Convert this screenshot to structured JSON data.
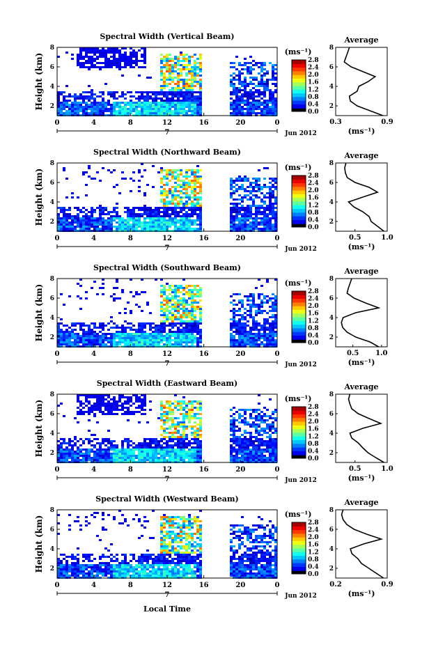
{
  "figure": {
    "xlabel": "Local Time",
    "date_label": "Jun 2012",
    "day_label": "7",
    "ylabel": "Height (km)",
    "colorbar_unit": "(ms⁻¹)",
    "colorbar_ticks": [
      "0.0",
      "0.4",
      "0.8",
      "1.2",
      "1.6",
      "2.0",
      "2.4",
      "2.8"
    ],
    "avg_title": "Average",
    "avg_xlabel": "(ms⁻¹)"
  },
  "chart_data": [
    {
      "type": "heatmap",
      "title": "Spectral Width (Vertical Beam)",
      "xlabel": "Local Time",
      "ylabel": "Height (km)",
      "x_ticks": [
        "0",
        "4",
        "8",
        "12",
        "16",
        "20",
        "0"
      ],
      "y_ticks": [
        "2",
        "4",
        "6",
        "8"
      ],
      "xlim": [
        0,
        24
      ],
      "ylim": [
        1,
        8
      ],
      "colorbar": {
        "label": "(ms⁻¹)",
        "range": [
          0.0,
          2.8
        ]
      },
      "data_gaps_hours": [
        [
          15.7,
          18.8
        ]
      ],
      "average_profile": {
        "title": "Average",
        "xlabel": "(ms⁻¹)",
        "x_ticks": [
          "0.3",
          "0.9"
        ],
        "xlim": [
          0.3,
          0.9
        ],
        "y_ticks": [
          "2",
          "4",
          "6",
          "8"
        ],
        "height_km": [
          1.0,
          1.5,
          2.0,
          2.5,
          3.0,
          3.5,
          4.0,
          4.5,
          5.0,
          5.5,
          6.0,
          6.5,
          7.0,
          7.5,
          8.0
        ],
        "width_ms": [
          0.85,
          0.7,
          0.55,
          0.47,
          0.46,
          0.55,
          0.57,
          0.68,
          0.76,
          0.62,
          0.48,
          0.4,
          0.42,
          0.44,
          0.46
        ]
      }
    },
    {
      "type": "heatmap",
      "title": "Spectral Width (Northward Beam)",
      "xlabel": "Local Time",
      "ylabel": "Height (km)",
      "x_ticks": [
        "0",
        "4",
        "8",
        "12",
        "16",
        "20",
        "0"
      ],
      "y_ticks": [
        "2",
        "4",
        "6",
        "8"
      ],
      "xlim": [
        0,
        24
      ],
      "ylim": [
        1,
        8
      ],
      "colorbar": {
        "label": "(ms⁻¹)",
        "range": [
          0.0,
          2.8
        ]
      },
      "data_gaps_hours": [
        [
          15.7,
          18.8
        ]
      ],
      "average_profile": {
        "title": "Average",
        "xlabel": "(ms⁻¹)",
        "x_ticks": [
          "0.5",
          "1.0"
        ],
        "xlim": [
          0.2,
          1.0
        ],
        "y_ticks": [
          "2",
          "4",
          "6",
          "8"
        ],
        "height_km": [
          1.0,
          1.5,
          2.0,
          2.5,
          3.0,
          3.5,
          4.0,
          4.5,
          5.0,
          5.5,
          6.0,
          6.5,
          7.0,
          7.5,
          8.0
        ],
        "width_ms": [
          0.95,
          0.85,
          0.75,
          0.72,
          0.62,
          0.48,
          0.4,
          0.62,
          0.85,
          0.72,
          0.5,
          0.38,
          0.35,
          0.34,
          0.36
        ]
      }
    },
    {
      "type": "heatmap",
      "title": "Spectral Width (Southward Beam)",
      "xlabel": "Local Time",
      "ylabel": "Height (km)",
      "x_ticks": [
        "0",
        "4",
        "8",
        "12",
        "16",
        "20",
        "0"
      ],
      "y_ticks": [
        "2",
        "4",
        "6",
        "8"
      ],
      "xlim": [
        0,
        24
      ],
      "ylim": [
        1,
        8
      ],
      "colorbar": {
        "label": "(ms⁻¹)",
        "range": [
          0.0,
          2.8
        ]
      },
      "data_gaps_hours": [
        [
          15.7,
          18.8
        ]
      ],
      "average_profile": {
        "title": "Average",
        "xlabel": "(ms⁻¹)",
        "x_ticks": [
          "0.5",
          "1.0"
        ],
        "xlim": [
          0.2,
          1.1
        ],
        "y_ticks": [
          "2",
          "4",
          "6",
          "8"
        ],
        "height_km": [
          1.0,
          1.5,
          2.0,
          2.5,
          3.0,
          3.5,
          4.0,
          4.5,
          5.0,
          5.5,
          6.0,
          6.5,
          7.0,
          7.5,
          8.0
        ],
        "width_ms": [
          0.95,
          0.8,
          0.55,
          0.4,
          0.32,
          0.3,
          0.33,
          0.55,
          0.95,
          0.72,
          0.52,
          0.4,
          0.42,
          0.45,
          0.48
        ]
      }
    },
    {
      "type": "heatmap",
      "title": "Spectral Width (Eastward Beam)",
      "xlabel": "Local Time",
      "ylabel": "Height (km)",
      "x_ticks": [
        "0",
        "4",
        "8",
        "12",
        "16",
        "20",
        "0"
      ],
      "y_ticks": [
        "2",
        "4",
        "6",
        "8"
      ],
      "xlim": [
        0,
        24
      ],
      "ylim": [
        1,
        8
      ],
      "colorbar": {
        "label": "(ms⁻¹)",
        "range": [
          0.0,
          2.8
        ]
      },
      "data_gaps_hours": [
        [
          15.7,
          18.8
        ]
      ],
      "average_profile": {
        "title": "Average",
        "xlabel": "(ms⁻¹)",
        "x_ticks": [
          "0.5",
          "1.0"
        ],
        "xlim": [
          0.2,
          1.0
        ],
        "y_ticks": [
          "2",
          "4",
          "6",
          "8"
        ],
        "height_km": [
          1.0,
          1.5,
          2.0,
          2.5,
          3.0,
          3.5,
          4.0,
          4.5,
          5.0,
          5.5,
          6.0,
          6.5,
          7.0,
          7.5,
          8.0
        ],
        "width_ms": [
          0.95,
          0.82,
          0.7,
          0.62,
          0.55,
          0.45,
          0.42,
          0.62,
          0.9,
          0.72,
          0.55,
          0.45,
          0.42,
          0.4,
          0.42
        ]
      }
    },
    {
      "type": "heatmap",
      "title": "Spectral Width (Westward Beam)",
      "xlabel": "Local Time",
      "ylabel": "Height (km)",
      "x_ticks": [
        "0",
        "4",
        "8",
        "12",
        "16",
        "20",
        "0"
      ],
      "y_ticks": [
        "2",
        "4",
        "6",
        "8"
      ],
      "xlim": [
        0,
        24
      ],
      "ylim": [
        1,
        8
      ],
      "colorbar": {
        "label": "(ms⁻¹)",
        "range": [
          0.0,
          2.8
        ]
      },
      "data_gaps_hours": [
        [
          15.7,
          18.8
        ]
      ],
      "average_profile": {
        "title": "Average",
        "xlabel": "(ms⁻¹)",
        "x_ticks": [
          "0.2",
          "0.9"
        ],
        "xlim": [
          0.2,
          0.9
        ],
        "y_ticks": [
          "2",
          "4",
          "6",
          "8"
        ],
        "height_km": [
          1.0,
          1.5,
          2.0,
          2.5,
          3.0,
          3.5,
          4.0,
          4.5,
          5.0,
          5.5,
          6.0,
          6.5,
          7.0,
          7.5,
          8.0
        ],
        "width_ms": [
          0.85,
          0.75,
          0.65,
          0.55,
          0.5,
          0.42,
          0.4,
          0.58,
          0.82,
          0.62,
          0.45,
          0.35,
          0.3,
          0.28,
          0.3
        ]
      }
    }
  ]
}
